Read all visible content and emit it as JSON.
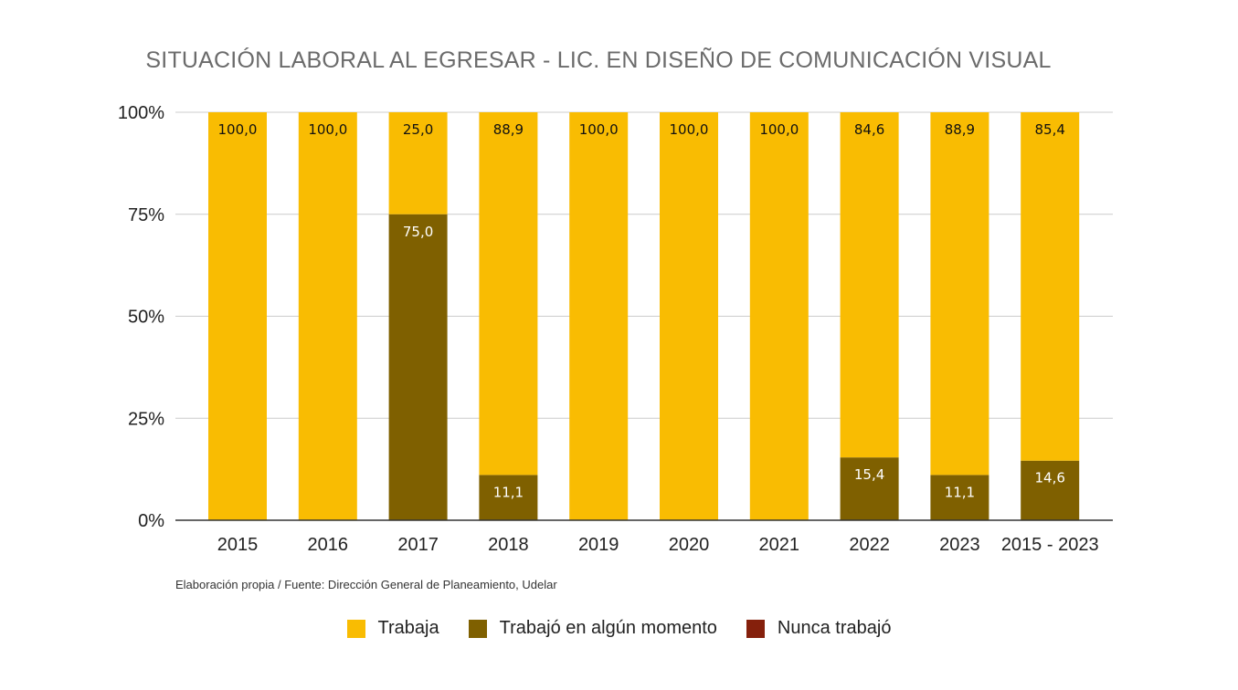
{
  "chart_data": {
    "type": "bar",
    "stacked": true,
    "title": "SITUACIÓN LABORAL AL EGRESAR - LIC. EN DISEÑO DE COMUNICACIÓN VISUAL",
    "source_note": "Elaboración propia / Fuente: Dirección General de Planeamiento, Udelar",
    "categories": [
      "2015",
      "2016",
      "2017",
      "2018",
      "2019",
      "2020",
      "2021",
      "2022",
      "2023",
      "2015 - 2023"
    ],
    "ylim": [
      0,
      100
    ],
    "yticks": [
      "0%",
      "25%",
      "50%",
      "75%",
      "100%"
    ],
    "yticks_values": [
      0,
      25,
      50,
      75,
      100
    ],
    "series": [
      {
        "name": "Trabaja",
        "color": "#F9BC02",
        "values": [
          100.0,
          100.0,
          25.0,
          88.9,
          100.0,
          100.0,
          100.0,
          84.6,
          88.9,
          85.4
        ],
        "labels": [
          "100,0",
          "100,0",
          "25,0",
          "88,9",
          "100,0",
          "100,0",
          "100,0",
          "84,6",
          "88,9",
          "85,4"
        ]
      },
      {
        "name": "Trabajó en algún momento",
        "color": "#7F6000",
        "values": [
          0,
          0,
          75.0,
          11.1,
          0,
          0,
          0,
          15.4,
          11.1,
          14.6
        ],
        "labels": [
          "",
          "",
          "75,0",
          "11,1",
          "",
          "",
          "",
          "15,4",
          "11,1",
          "14,6"
        ]
      },
      {
        "name": "Nunca trabajó",
        "color": "#85200C",
        "values": [
          0,
          0,
          0,
          0,
          0,
          0,
          0,
          0,
          0,
          0
        ],
        "labels": [
          "",
          "",
          "",
          "",
          "",
          "",
          "",
          "",
          "",
          ""
        ]
      }
    ],
    "grid": true,
    "legend": "bottom"
  }
}
